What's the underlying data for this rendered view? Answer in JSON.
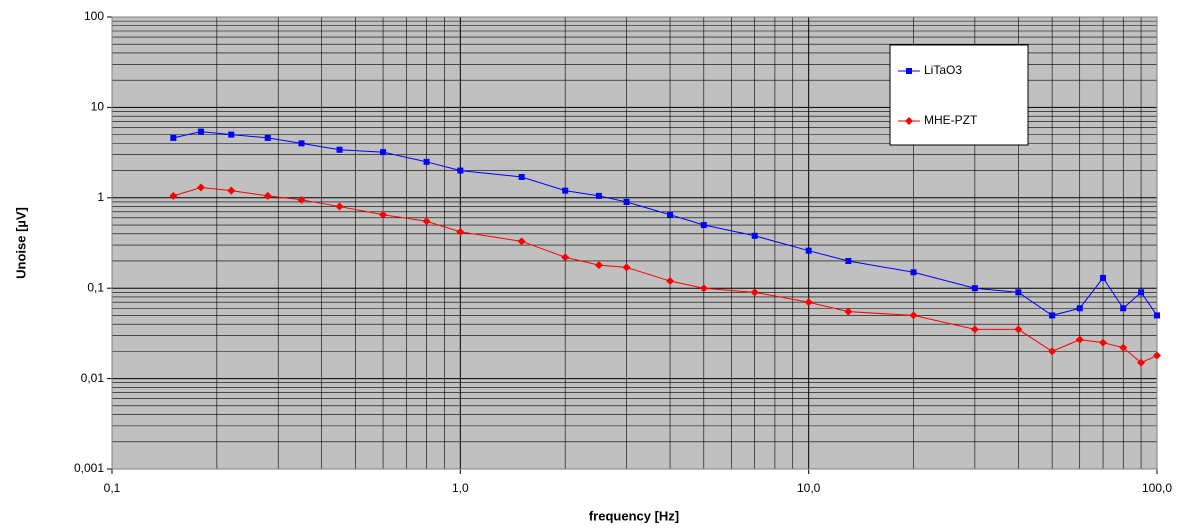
{
  "chart_data": {
    "type": "line",
    "xlabel": "frequency [Hz]",
    "ylabel": "Unoise [µV]",
    "x": [
      0.15,
      0.18,
      0.22,
      0.28,
      0.35,
      0.45,
      0.6,
      0.8,
      1,
      1.5,
      2,
      2.5,
      3,
      4,
      5,
      7,
      10,
      13,
      20,
      30,
      40,
      50,
      60,
      70,
      80,
      90,
      100
    ],
    "series": [
      {
        "name": "LiTaO3",
        "color": "#0000ff",
        "marker": "square",
        "values": [
          4.6,
          5.4,
          5.0,
          4.6,
          4.0,
          3.4,
          3.2,
          2.5,
          2.0,
          1.7,
          1.2,
          1.05,
          0.9,
          0.65,
          0.5,
          0.38,
          0.26,
          0.2,
          0.15,
          0.1,
          0.09,
          0.05,
          0.06,
          0.13,
          0.06,
          0.09,
          0.05
        ]
      },
      {
        "name": "MHE-PZT",
        "color": "#ff0000",
        "marker": "diamond",
        "values": [
          1.05,
          1.3,
          1.2,
          1.05,
          0.95,
          0.8,
          0.65,
          0.55,
          0.42,
          0.33,
          0.22,
          0.18,
          0.17,
          0.12,
          0.1,
          0.09,
          0.07,
          0.055,
          0.05,
          0.035,
          0.035,
          0.02,
          0.027,
          0.025,
          0.022,
          0.015,
          0.018
        ]
      }
    ],
    "xscale": "log",
    "yscale": "log",
    "xlim": [
      0.1,
      100
    ],
    "ylim": [
      0.001,
      100
    ],
    "xticks": [
      {
        "value": 0.1,
        "label": "0,1"
      },
      {
        "value": 1,
        "label": "1,0"
      },
      {
        "value": 10,
        "label": "10,0"
      },
      {
        "value": 100,
        "label": "100,0"
      }
    ],
    "yticks": [
      {
        "value": 0.001,
        "label": "0,001"
      },
      {
        "value": 0.01,
        "label": "0,01"
      },
      {
        "value": 0.1,
        "label": "0,1"
      },
      1,
      10,
      100
    ],
    "grid": true,
    "minor_grid": true,
    "legend": "upper right",
    "plot_background": "#c0c0c0"
  }
}
